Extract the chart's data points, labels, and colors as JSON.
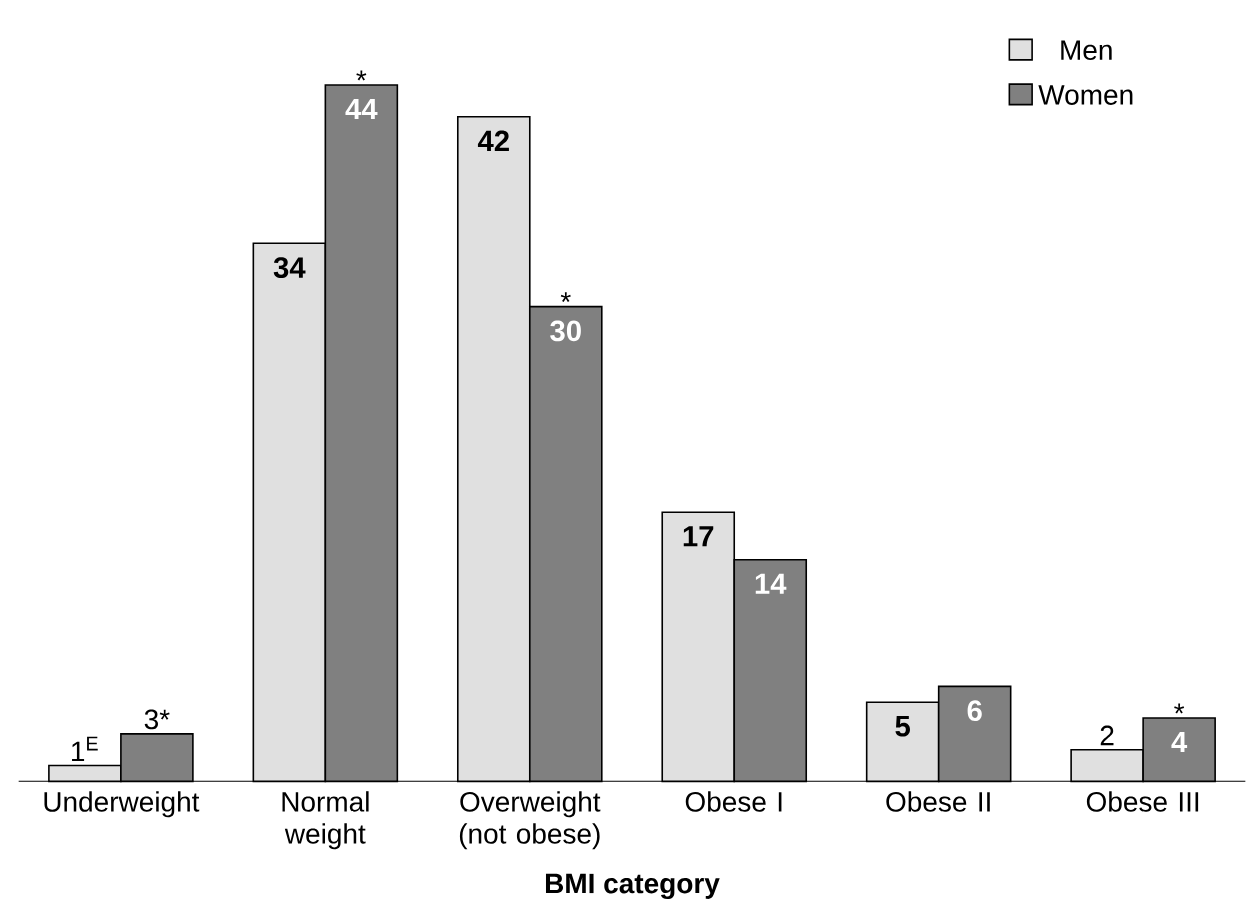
{
  "chart_data": {
    "type": "bar",
    "xlabel": "BMI category",
    "categories": [
      "Underweight",
      "Normal weight",
      "Overweight (not obese)",
      "Obese I",
      "Obese II",
      "Obese III"
    ],
    "series": [
      {
        "name": "Men",
        "color": "#e0e0e0",
        "values": [
          1,
          34,
          42,
          17,
          5,
          2
        ],
        "value_labels": [
          "1$^{E}$",
          "34",
          "42",
          "17",
          "5",
          "2"
        ]
      },
      {
        "name": "Women",
        "color": "#808080",
        "values": [
          3,
          44,
          30,
          14,
          6,
          4
        ],
        "value_labels": [
          "3*",
          "44",
          "30",
          "14",
          "6",
          "4"
        ]
      }
    ],
    "annotations": [
      {
        "text": "*",
        "x": "Normal weight",
        "y": 44
      },
      {
        "text": "*",
        "x": "Overweight (not obese)",
        "y": 30
      },
      {
        "text": "*",
        "x": "Obese III",
        "y": 4
      }
    ],
    "legend": "top right"
  }
}
